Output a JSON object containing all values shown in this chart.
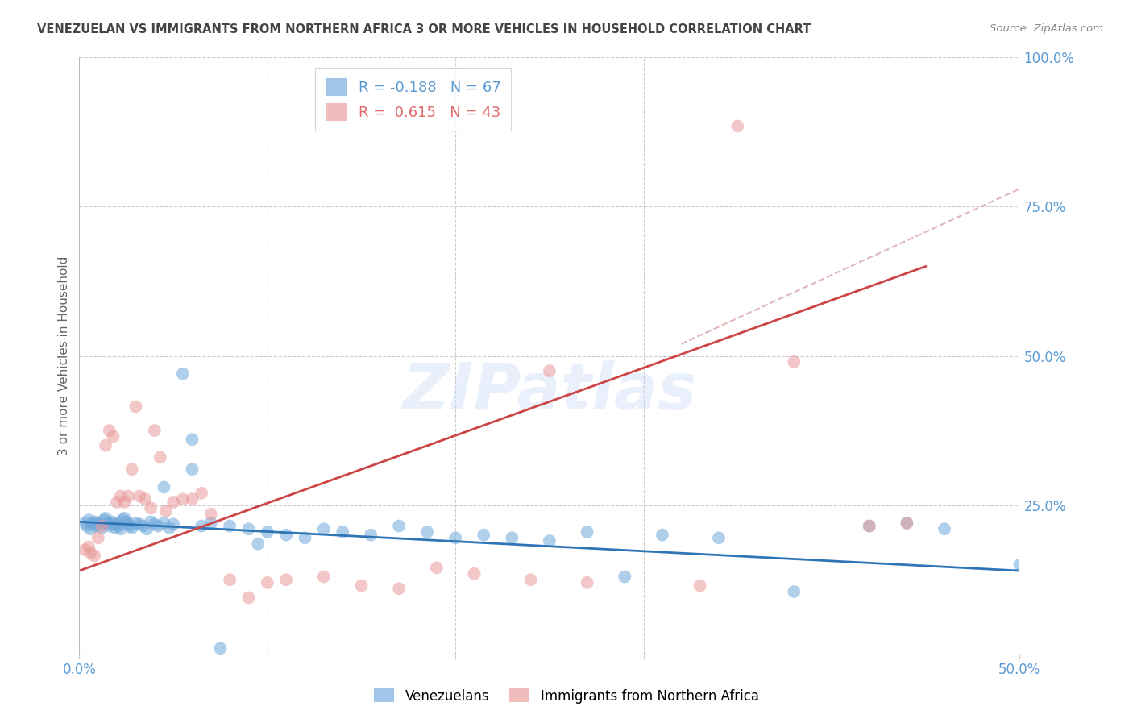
{
  "title": "VENEZUELAN VS IMMIGRANTS FROM NORTHERN AFRICA 3 OR MORE VEHICLES IN HOUSEHOLD CORRELATION CHART",
  "source": "Source: ZipAtlas.com",
  "ylabel": "3 or more Vehicles in Household",
  "xlim": [
    0.0,
    0.5
  ],
  "ylim": [
    0.0,
    1.0
  ],
  "xtick_vals": [
    0.0,
    0.1,
    0.2,
    0.3,
    0.4,
    0.5
  ],
  "xtick_labels": [
    "0.0%",
    "",
    "",
    "",
    "",
    "50.0%"
  ],
  "ytick_right_vals": [
    0.0,
    0.25,
    0.5,
    0.75,
    1.0
  ],
  "ytick_right_labels": [
    "",
    "25.0%",
    "50.0%",
    "75.0%",
    "100.0%"
  ],
  "watermark": "ZIPatlas",
  "blue_color": "#6fa8dc",
  "pink_color": "#ea9999",
  "blue_R": -0.188,
  "blue_N": 67,
  "pink_R": 0.615,
  "pink_N": 43,
  "blue_scatter_x": [
    0.003,
    0.004,
    0.005,
    0.006,
    0.007,
    0.008,
    0.009,
    0.01,
    0.011,
    0.012,
    0.013,
    0.014,
    0.015,
    0.016,
    0.017,
    0.018,
    0.019,
    0.02,
    0.021,
    0.022,
    0.023,
    0.024,
    0.025,
    0.026,
    0.027,
    0.028,
    0.03,
    0.032,
    0.034,
    0.036,
    0.038,
    0.04,
    0.042,
    0.045,
    0.048,
    0.05,
    0.055,
    0.06,
    0.065,
    0.07,
    0.08,
    0.09,
    0.1,
    0.11,
    0.12,
    0.13,
    0.14,
    0.155,
    0.17,
    0.185,
    0.2,
    0.215,
    0.23,
    0.25,
    0.27,
    0.29,
    0.31,
    0.34,
    0.38,
    0.42,
    0.44,
    0.46,
    0.045,
    0.06,
    0.075,
    0.095,
    0.5
  ],
  "blue_scatter_y": [
    0.22,
    0.215,
    0.225,
    0.21,
    0.218,
    0.222,
    0.215,
    0.22,
    0.218,
    0.212,
    0.225,
    0.228,
    0.22,
    0.215,
    0.222,
    0.218,
    0.212,
    0.22,
    0.215,
    0.21,
    0.225,
    0.228,
    0.222,
    0.218,
    0.215,
    0.212,
    0.22,
    0.218,
    0.215,
    0.21,
    0.222,
    0.218,
    0.215,
    0.22,
    0.212,
    0.218,
    0.47,
    0.36,
    0.215,
    0.22,
    0.215,
    0.21,
    0.205,
    0.2,
    0.195,
    0.21,
    0.205,
    0.2,
    0.215,
    0.205,
    0.195,
    0.2,
    0.195,
    0.19,
    0.205,
    0.13,
    0.2,
    0.195,
    0.105,
    0.215,
    0.22,
    0.21,
    0.28,
    0.31,
    0.01,
    0.185,
    0.15
  ],
  "pink_scatter_x": [
    0.003,
    0.005,
    0.006,
    0.008,
    0.01,
    0.012,
    0.014,
    0.016,
    0.018,
    0.02,
    0.022,
    0.024,
    0.026,
    0.028,
    0.03,
    0.032,
    0.035,
    0.038,
    0.04,
    0.043,
    0.046,
    0.05,
    0.055,
    0.06,
    0.065,
    0.07,
    0.08,
    0.09,
    0.1,
    0.11,
    0.13,
    0.15,
    0.17,
    0.19,
    0.21,
    0.24,
    0.27,
    0.33,
    0.38,
    0.42,
    0.44,
    0.35,
    0.25
  ],
  "pink_scatter_y": [
    0.175,
    0.18,
    0.17,
    0.165,
    0.195,
    0.215,
    0.35,
    0.375,
    0.365,
    0.255,
    0.265,
    0.255,
    0.265,
    0.31,
    0.415,
    0.265,
    0.26,
    0.245,
    0.375,
    0.33,
    0.24,
    0.255,
    0.26,
    0.26,
    0.27,
    0.235,
    0.125,
    0.095,
    0.12,
    0.125,
    0.13,
    0.115,
    0.11,
    0.145,
    0.135,
    0.125,
    0.12,
    0.115,
    0.49,
    0.215,
    0.22,
    0.885,
    0.475
  ],
  "blue_line_x": [
    0.0,
    0.5
  ],
  "blue_line_y": [
    0.222,
    0.14
  ],
  "pink_line_x": [
    0.0,
    0.45
  ],
  "pink_line_y": [
    0.14,
    0.65
  ],
  "dashed_line_x": [
    0.32,
    0.5
  ],
  "dashed_line_y": [
    0.52,
    0.78
  ],
  "legend_blue_label": "Venezuelans",
  "legend_pink_label": "Immigrants from Northern Africa",
  "background_color": "#ffffff",
  "grid_color": "#cccccc",
  "title_color": "#444444",
  "right_axis_color": "#5b9bd5",
  "bottom_axis_color": "#5b9bd5",
  "legend_text_blue": "#5b9bd5",
  "legend_text_pink": "#e06c6c"
}
